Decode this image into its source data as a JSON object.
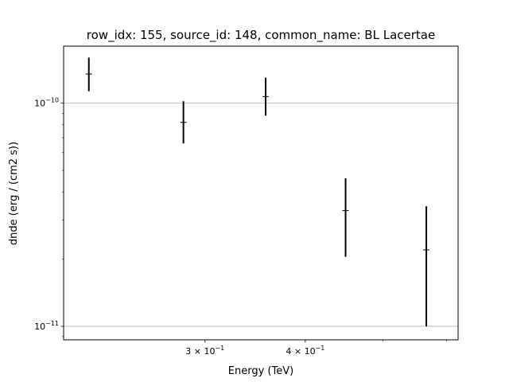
{
  "chart_data": {
    "type": "scatter",
    "title": "row_idx: 155, source_id: 148, common_name: BL Lacertae",
    "xlabel": "Energy (TeV)",
    "ylabel": "dnde (erg / (cm2 s))",
    "xscale": "log",
    "yscale": "log",
    "xlim": [
      0.2,
      0.62
    ],
    "ylim": [
      8.7e-12,
      1.8e-10
    ],
    "grid": "y-major",
    "x_ticks": [
      {
        "value": 0.3,
        "label": "3 × 10",
        "exp": "−1"
      },
      {
        "value": 0.4,
        "label": "4 × 10",
        "exp": "−1"
      }
    ],
    "x_minor_ticks": [
      0.5,
      0.6
    ],
    "y_ticks": [
      {
        "value": 1e-10,
        "label": "10",
        "exp": "−10"
      },
      {
        "value": 1e-11,
        "label": "10",
        "exp": "−11"
      }
    ],
    "series": [
      {
        "color": "#000000",
        "points": [
          {
            "x": 0.215,
            "y": 1.35e-10,
            "y_low": 1.13e-10,
            "y_high": 1.6e-10
          },
          {
            "x": 0.282,
            "y": 8.2e-11,
            "y_low": 6.6e-11,
            "y_high": 1.02e-10
          },
          {
            "x": 0.357,
            "y": 1.07e-10,
            "y_low": 8.8e-11,
            "y_high": 1.3e-10
          },
          {
            "x": 0.449,
            "y": 3.3e-11,
            "y_low": 2.05e-11,
            "y_high": 4.6e-11
          },
          {
            "x": 0.566,
            "y": 2.2e-11,
            "y_low": 1e-11,
            "y_high": 3.45e-11
          }
        ]
      }
    ]
  }
}
